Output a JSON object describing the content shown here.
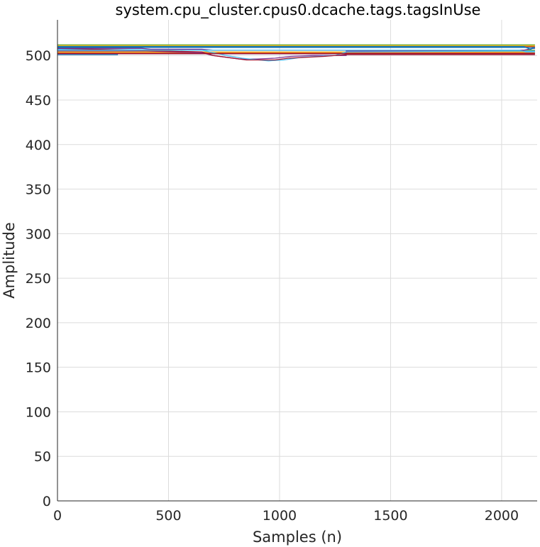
{
  "chart_data": {
    "type": "line",
    "title": "system.cpu_cluster.cpus0.dcache.tags.tagsInUse",
    "xlabel": "Samples (n)",
    "ylabel": "Amplitude",
    "xlim": [
      0,
      2160
    ],
    "ylim": [
      0,
      540
    ],
    "xticks": [
      0,
      500,
      1000,
      1500,
      2000
    ],
    "yticks": [
      0,
      50,
      100,
      150,
      200,
      250,
      300,
      350,
      400,
      450,
      500
    ],
    "grid": true,
    "legend": "none",
    "series": [
      {
        "color": "#0072BD",
        "points": [
          [
            0,
            501
          ],
          [
            270,
            501
          ],
          [
            270,
            502
          ],
          [
            2150,
            502
          ]
        ]
      },
      {
        "color": "#D95319",
        "points": [
          [
            0,
            503
          ],
          [
            2150,
            503
          ]
        ]
      },
      {
        "color": "#EDB120",
        "points": [
          [
            0,
            504
          ],
          [
            2150,
            504
          ]
        ]
      },
      {
        "color": "#7E2F8E",
        "points": [
          [
            0,
            505
          ],
          [
            400,
            505
          ],
          [
            650,
            503
          ],
          [
            700,
            500
          ],
          [
            760,
            498
          ],
          [
            820,
            496
          ],
          [
            900,
            496
          ],
          [
            980,
            497
          ],
          [
            1050,
            499
          ],
          [
            1150,
            500
          ],
          [
            1300,
            500
          ],
          [
            1300,
            505
          ],
          [
            2150,
            505
          ]
        ]
      },
      {
        "color": "#77AC30",
        "points": [
          [
            0,
            506
          ],
          [
            2150,
            506
          ]
        ]
      },
      {
        "color": "#4DBEEE",
        "points": [
          [
            0,
            507
          ],
          [
            650,
            506
          ],
          [
            760,
            500
          ],
          [
            830,
            497
          ],
          [
            950,
            494
          ],
          [
            1020,
            495
          ],
          [
            1100,
            498
          ],
          [
            1250,
            500
          ],
          [
            1300,
            504
          ],
          [
            2150,
            505
          ]
        ]
      },
      {
        "color": "#A2142F",
        "points": [
          [
            0,
            508
          ],
          [
            650,
            504
          ],
          [
            700,
            500
          ],
          [
            850,
            495
          ],
          [
            980,
            495
          ],
          [
            1040,
            497
          ],
          [
            1200,
            499
          ],
          [
            1300,
            501
          ],
          [
            1500,
            501
          ],
          [
            2150,
            501
          ]
        ]
      },
      {
        "color": "#0072BD",
        "points": [
          [
            0,
            509
          ],
          [
            2150,
            509
          ]
        ]
      },
      {
        "color": "#D95319",
        "points": [
          [
            0,
            510
          ],
          [
            2150,
            510
          ]
        ]
      },
      {
        "color": "#EDB120",
        "points": [
          [
            0,
            511
          ],
          [
            2150,
            511
          ]
        ]
      },
      {
        "color": "#7E2F8E",
        "points": [
          [
            0,
            508
          ],
          [
            380,
            508
          ],
          [
            420,
            507
          ],
          [
            650,
            507
          ],
          [
            700,
            506
          ],
          [
            2100,
            506
          ],
          [
            2140,
            508
          ],
          [
            2150,
            508
          ]
        ]
      },
      {
        "color": "#77AC30",
        "points": [
          [
            0,
            512
          ],
          [
            2150,
            512
          ]
        ]
      },
      {
        "color": "#4DBEEE",
        "points": [
          [
            0,
            506
          ],
          [
            2080,
            506
          ],
          [
            2110,
            504
          ],
          [
            2150,
            504
          ]
        ]
      },
      {
        "color": "#A2142F",
        "points": [
          [
            0,
            502
          ],
          [
            2150,
            502
          ]
        ]
      },
      {
        "color": "#0072BD",
        "points": [
          [
            0,
            510
          ],
          [
            2100,
            510
          ],
          [
            2130,
            507
          ],
          [
            2150,
            509
          ]
        ]
      }
    ]
  }
}
